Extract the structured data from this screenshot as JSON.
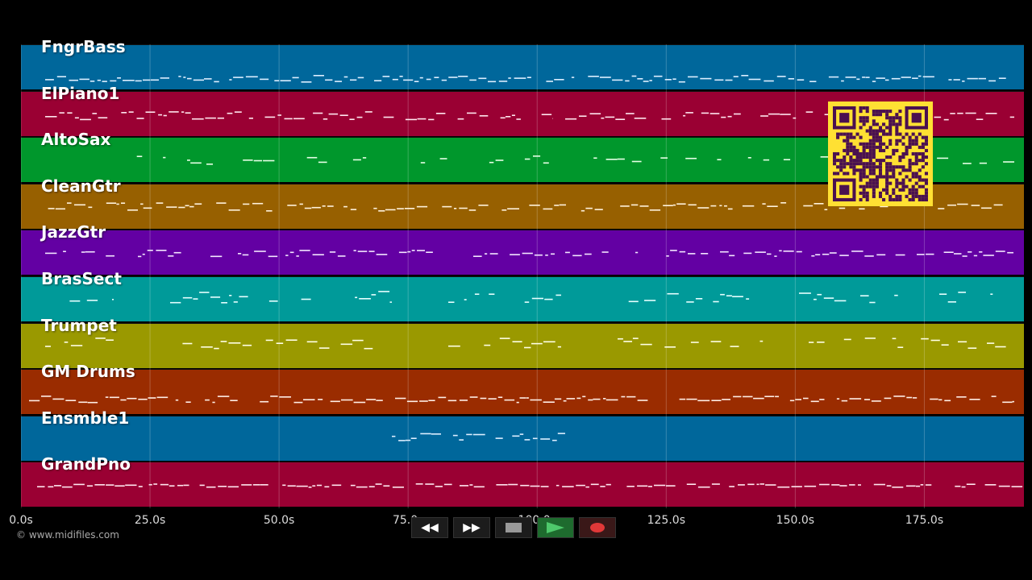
{
  "tracks": [
    {
      "name": "FngrBass",
      "color": "#00679b",
      "note_color": "#ddeeff"
    },
    {
      "name": "ElPiano1",
      "color": "#9a0033",
      "note_color": "#ffe6ee"
    },
    {
      "name": "AltoSax",
      "color": "#00972c",
      "note_color": "#e6ffe6"
    },
    {
      "name": "CleanGtr",
      "color": "#976000",
      "note_color": "#fff2dd"
    },
    {
      "name": "JazzGtr",
      "color": "#6300a3",
      "note_color": "#f3e6ff"
    },
    {
      "name": "BrasSect",
      "color": "#009a99",
      "note_color": "#e6ffff"
    },
    {
      "name": "Trumpet",
      "color": "#9a9900",
      "note_color": "#ffffe6"
    },
    {
      "name": "GM Drums",
      "color": "#9a2c00",
      "note_color": "#ffeee6"
    },
    {
      "name": "Ensmble1",
      "color": "#00679b",
      "note_color": "#ddeeff"
    },
    {
      "name": "GrandPno",
      "color": "#9a0033",
      "note_color": "#ffe6ee"
    }
  ],
  "timeline": {
    "ticks": [
      "0.0s",
      "25.0s",
      "50.0s",
      "75.0s",
      "100.0s",
      "125.0s",
      "150.0s",
      "175.0s"
    ],
    "max_seconds": 194.3
  },
  "copyright": "© www.midifiles.com",
  "transport": {
    "rewind": "◀◀",
    "fast_forward": "▶▶"
  },
  "qr": {
    "fg_color": "#4a1050",
    "bg_color": "#ffe033"
  }
}
